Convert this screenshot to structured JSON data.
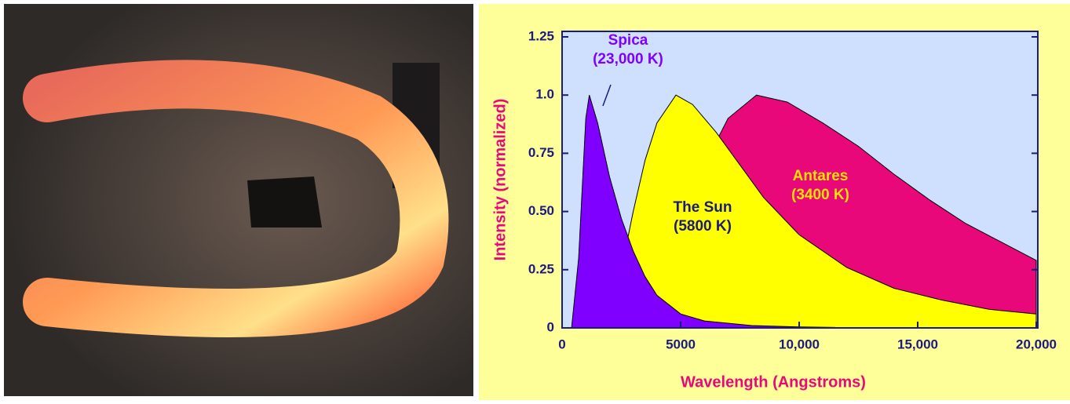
{
  "chart_data": {
    "type": "area",
    "x_label": "Wavelength (Angstroms)",
    "y_label": "Intensity (normalized)",
    "xlim": [
      0,
      20000
    ],
    "ylim": [
      0,
      1.25
    ],
    "xticks": [
      0,
      {
        "value": 5000,
        "label": "5000"
      },
      {
        "value": 10000,
        "label": "10,000"
      },
      {
        "value": 15000,
        "label": "15,000"
      },
      {
        "value": 20000,
        "label": "20,000"
      }
    ],
    "yticks": [
      0,
      0.25,
      {
        "value": 0.5,
        "label": "0.50"
      },
      0.75,
      {
        "value": 1,
        "label": "1.0"
      },
      1.25
    ],
    "series": [
      {
        "name": "Antares",
        "temperature_label": "(3400 K)",
        "color": "#e8087a",
        "label_color": "#ffe000",
        "x": [
          3000,
          4000,
          5000,
          6000,
          7000,
          8200,
          9500,
          11000,
          12500,
          14000,
          15500,
          17000,
          18500,
          20000
        ],
        "values": [
          0.05,
          0.2,
          0.45,
          0.7,
          0.9,
          1.0,
          0.97,
          0.88,
          0.78,
          0.66,
          0.55,
          0.45,
          0.37,
          0.29
        ]
      },
      {
        "name": "The Sun",
        "temperature_label": "(5800 K)",
        "color": "#ffff00",
        "label_color": "#1a1a80",
        "x": [
          1500,
          2000,
          2500,
          3000,
          3500,
          4000,
          4800,
          5500,
          6500,
          7500,
          8500,
          10000,
          12000,
          14000,
          16000,
          18000,
          20000
        ],
        "values": [
          0,
          0.08,
          0.25,
          0.5,
          0.72,
          0.88,
          1.0,
          0.96,
          0.84,
          0.7,
          0.56,
          0.4,
          0.26,
          0.17,
          0.12,
          0.08,
          0.06
        ]
      },
      {
        "name": "Spica",
        "temperature_label": "(23,000 K)",
        "color": "#8000ff",
        "label_color": "#8000ff",
        "x": [
          400,
          700,
          1000,
          1150,
          1500,
          2000,
          2500,
          3000,
          3500,
          4000,
          5000,
          6000,
          8000,
          10000,
          11500
        ],
        "values": [
          0,
          0.3,
          0.9,
          1.0,
          0.88,
          0.65,
          0.47,
          0.33,
          0.22,
          0.14,
          0.06,
          0.03,
          0.01,
          0.004,
          0.002
        ]
      }
    ]
  }
}
